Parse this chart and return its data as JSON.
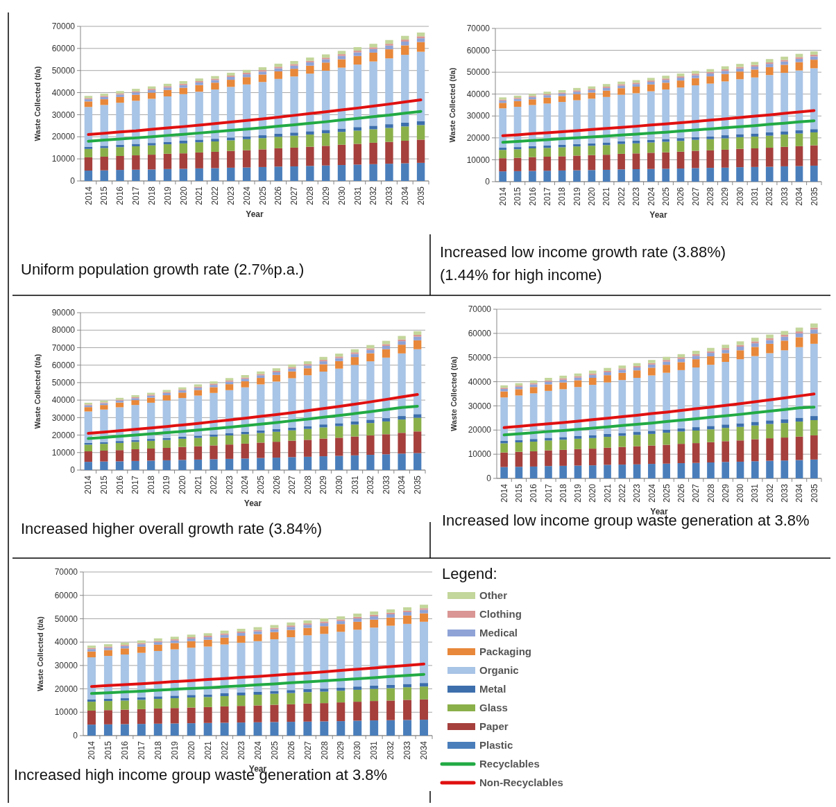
{
  "chart_data": [
    {
      "type": "bar",
      "stacked": true,
      "grid": "y",
      "legend": false,
      "xlabel": "Year",
      "ylabel": "Waste Collected (t/a)",
      "ylim": [
        0,
        70000
      ],
      "yticks": [
        0,
        10000,
        20000,
        30000,
        40000,
        50000,
        60000,
        70000
      ],
      "annotations": [
        "Uniform population growth rate (2.7%p.a.)"
      ],
      "categories": [
        "2014",
        "2015",
        "2016",
        "2017",
        "2018",
        "2019",
        "2020",
        "2021",
        "2022",
        "2023",
        "2024",
        "2025",
        "2026",
        "2027",
        "2028",
        "2029",
        "2030",
        "2031",
        "2032",
        "2033",
        "2034",
        "2035"
      ],
      "series": [
        {
          "color": "#4a7ebb",
          "values": [
            4700,
            4800,
            5000,
            5100,
            5200,
            5400,
            5500,
            5700,
            5800,
            6000,
            6100,
            6300,
            6500,
            6600,
            6800,
            7000,
            7200,
            7400,
            7600,
            7800,
            8000,
            8200
          ]
        },
        {
          "color": "#a5403d",
          "values": [
            6000,
            6200,
            6300,
            6500,
            6700,
            6900,
            7000,
            7200,
            7400,
            7600,
            7800,
            8000,
            8300,
            8500,
            8700,
            8900,
            9200,
            9400,
            9700,
            9900,
            10200,
            10500
          ]
        },
        {
          "color": "#8ab04a",
          "values": [
            3800,
            3900,
            4000,
            4100,
            4200,
            4300,
            4500,
            4600,
            4700,
            4800,
            5000,
            5100,
            5200,
            5400,
            5500,
            5700,
            5800,
            6000,
            6100,
            6300,
            6500,
            6600
          ]
        },
        {
          "color": "#3d6fad",
          "values": [
            1000,
            1000,
            1100,
            1100,
            1100,
            1100,
            1200,
            1200,
            1200,
            1300,
            1300,
            1300,
            1400,
            1400,
            1500,
            1500,
            1500,
            1600,
            1600,
            1700,
            1700,
            1700
          ]
        },
        {
          "color": "#a8c4e6",
          "values": [
            18000,
            18500,
            19000,
            19500,
            20000,
            20600,
            21100,
            21700,
            22300,
            22900,
            23500,
            24100,
            24800,
            25400,
            26100,
            26800,
            27600,
            28300,
            29100,
            29800,
            30700,
            31500
          ]
        },
        {
          "color": "#e8883a",
          "values": [
            2500,
            2600,
            2600,
            2700,
            2800,
            2900,
            2900,
            3000,
            3100,
            3200,
            3300,
            3400,
            3400,
            3500,
            3600,
            3700,
            3800,
            3900,
            4000,
            4100,
            4300,
            4400
          ]
        },
        {
          "color": "#8fa3d6",
          "values": [
            1000,
            1000,
            1100,
            1100,
            1100,
            1100,
            1200,
            1200,
            1200,
            1300,
            1300,
            1300,
            1400,
            1400,
            1500,
            1500,
            1500,
            1600,
            1600,
            1700,
            1700,
            1700
          ]
        },
        {
          "color": "#d99694",
          "values": [
            500,
            500,
            500,
            500,
            600,
            600,
            600,
            600,
            600,
            600,
            700,
            700,
            700,
            700,
            700,
            700,
            800,
            800,
            800,
            800,
            900,
            900
          ]
        },
        {
          "color": "#c3d69b",
          "values": [
            1000,
            1000,
            1100,
            1100,
            1100,
            1100,
            1200,
            1200,
            1200,
            1300,
            1300,
            1300,
            1400,
            1400,
            1500,
            1500,
            1500,
            1600,
            1600,
            1700,
            1700,
            1700
          ]
        },
        {
          "type": "line",
          "color": "#22aa44",
          "values": [
            18000,
            18500,
            19000,
            19500,
            20000,
            20600,
            21100,
            21700,
            22300,
            22900,
            23500,
            24100,
            24800,
            25400,
            26100,
            26800,
            27600,
            28300,
            29100,
            29800,
            30700,
            31500
          ]
        },
        {
          "type": "line",
          "color": "#e01010",
          "values": [
            21000,
            21600,
            22200,
            22700,
            23400,
            24000,
            24600,
            25300,
            26000,
            26700,
            27400,
            28100,
            28900,
            29700,
            30500,
            31300,
            32200,
            33000,
            33900,
            34800,
            35800,
            36700
          ]
        }
      ]
    },
    {
      "type": "bar",
      "stacked": true,
      "grid": "y",
      "legend": false,
      "xlabel": "Year",
      "ylabel": "Waste Collected (t/a)",
      "ylim": [
        0,
        70000
      ],
      "yticks": [
        0,
        10000,
        20000,
        30000,
        40000,
        50000,
        60000,
        70000
      ],
      "annotations": [
        "Increased low income growth rate (3.88%)",
        "(1.44% for high income)"
      ],
      "categories": [
        "2014",
        "2015",
        "2016",
        "2017",
        "2018",
        "2019",
        "2020",
        "2021",
        "2022",
        "2023",
        "2024",
        "2025",
        "2026",
        "2027",
        "2028",
        "2029",
        "2030",
        "2031",
        "2032",
        "2033",
        "2034",
        "2035"
      ],
      "series": [
        {
          "color": "#4a7ebb",
          "values": [
            4700,
            4800,
            4900,
            5000,
            5100,
            5200,
            5300,
            5400,
            5600,
            5700,
            5800,
            5900,
            6000,
            6200,
            6300,
            6400,
            6600,
            6700,
            6800,
            7000,
            7100,
            7300
          ]
        },
        {
          "color": "#a5403d",
          "values": [
            6000,
            6100,
            6300,
            6400,
            6500,
            6700,
            6800,
            6900,
            7100,
            7200,
            7400,
            7500,
            7700,
            7900,
            8000,
            8200,
            8400,
            8500,
            8700,
            8900,
            9100,
            9300
          ]
        },
        {
          "color": "#8ab04a",
          "values": [
            3800,
            3900,
            4000,
            4000,
            4100,
            4200,
            4300,
            4400,
            4500,
            4600,
            4700,
            4800,
            4900,
            5000,
            5100,
            5200,
            5300,
            5400,
            5500,
            5600,
            5800,
            5900
          ]
        },
        {
          "color": "#3d6fad",
          "values": [
            1000,
            1000,
            1000,
            1100,
            1100,
            1100,
            1100,
            1200,
            1200,
            1200,
            1200,
            1300,
            1300,
            1300,
            1300,
            1400,
            1400,
            1400,
            1500,
            1500,
            1500,
            1500
          ]
        },
        {
          "color": "#a8c4e6",
          "values": [
            18000,
            18400,
            18800,
            19200,
            19600,
            20000,
            20400,
            20800,
            21300,
            21700,
            22200,
            22600,
            23100,
            23600,
            24100,
            24600,
            25100,
            25600,
            26200,
            26700,
            27300,
            27800
          ]
        },
        {
          "color": "#e8883a",
          "values": [
            2500,
            2600,
            2600,
            2700,
            2700,
            2800,
            2800,
            2900,
            3000,
            3000,
            3100,
            3100,
            3200,
            3300,
            3300,
            3400,
            3500,
            3600,
            3600,
            3700,
            3800,
            3900
          ]
        },
        {
          "color": "#8fa3d6",
          "values": [
            1000,
            1000,
            1000,
            1100,
            1100,
            1100,
            1100,
            1200,
            1200,
            1200,
            1200,
            1300,
            1300,
            1300,
            1300,
            1400,
            1400,
            1400,
            1500,
            1500,
            1500,
            1500
          ]
        },
        {
          "color": "#d99694",
          "values": [
            500,
            500,
            500,
            500,
            500,
            600,
            600,
            600,
            600,
            600,
            600,
            600,
            600,
            700,
            700,
            700,
            700,
            700,
            700,
            700,
            800,
            800
          ]
        },
        {
          "color": "#c3d69b",
          "values": [
            1000,
            1000,
            1000,
            1100,
            1100,
            1100,
            1100,
            1200,
            1200,
            1200,
            1200,
            1300,
            1300,
            1300,
            1300,
            1400,
            1400,
            1400,
            1500,
            1500,
            1500,
            1500
          ]
        },
        {
          "type": "line",
          "color": "#22aa44",
          "values": [
            18000,
            18400,
            18800,
            19200,
            19600,
            20000,
            20400,
            20800,
            21300,
            21700,
            22200,
            22600,
            23100,
            23600,
            24100,
            24600,
            25100,
            25600,
            26200,
            26700,
            27300,
            27800
          ]
        },
        {
          "type": "line",
          "color": "#e01010",
          "values": [
            21000,
            21400,
            21900,
            22300,
            22800,
            23300,
            23800,
            24300,
            24800,
            25300,
            25900,
            26400,
            26900,
            27500,
            28100,
            28700,
            29300,
            29900,
            30500,
            31200,
            31800,
            32500
          ]
        }
      ]
    },
    {
      "type": "bar",
      "stacked": true,
      "grid": "y",
      "legend": false,
      "xlabel": "Year",
      "ylabel": "Waste Collected (t/a)",
      "ylim": [
        0,
        90000
      ],
      "yticks": [
        0,
        10000,
        20000,
        30000,
        40000,
        50000,
        60000,
        70000,
        80000,
        90000
      ],
      "annotations": [
        "Increased higher overall growth rate (3.84%)"
      ],
      "categories": [
        "2014",
        "2015",
        "2016",
        "2017",
        "2018",
        "2019",
        "2020",
        "2021",
        "2022",
        "2023",
        "2024",
        "2025",
        "2026",
        "2027",
        "2028",
        "2029",
        "2030",
        "2031",
        "2032",
        "2033",
        "2034",
        "2035"
      ],
      "series": [
        {
          "color": "#4a7ebb",
          "values": [
            4700,
            4900,
            5000,
            5200,
            5400,
            5600,
            5800,
            6000,
            6200,
            6400,
            6600,
            6900,
            7100,
            7400,
            7600,
            7900,
            8100,
            8400,
            8700,
            9000,
            9400,
            9700
          ]
        },
        {
          "color": "#a5403d",
          "values": [
            6000,
            6200,
            6400,
            6700,
            6900,
            7100,
            7400,
            7600,
            7900,
            8200,
            8500,
            8800,
            9100,
            9400,
            9700,
            10100,
            10400,
            10800,
            11100,
            11500,
            11900,
            12400
          ]
        },
        {
          "color": "#8ab04a",
          "values": [
            3800,
            3900,
            4100,
            4200,
            4400,
            4500,
            4700,
            4800,
            5000,
            5200,
            5400,
            5500,
            5700,
            5900,
            6200,
            6400,
            6600,
            6800,
            7100,
            7300,
            7600,
            7800
          ]
        },
        {
          "color": "#3d6fad",
          "values": [
            1000,
            1000,
            1100,
            1100,
            1100,
            1200,
            1200,
            1300,
            1300,
            1400,
            1400,
            1500,
            1500,
            1600,
            1600,
            1700,
            1700,
            1800,
            1900,
            1900,
            2000,
            2100
          ]
        },
        {
          "color": "#a8c4e6",
          "values": [
            18000,
            18600,
            19300,
            20000,
            20700,
            21400,
            22100,
            22900,
            23700,
            24500,
            25400,
            26300,
            27200,
            28200,
            29100,
            30200,
            31200,
            32300,
            33400,
            34600,
            35800,
            37100
          ]
        },
        {
          "color": "#e8883a",
          "values": [
            2500,
            2600,
            2700,
            2800,
            2900,
            3000,
            3100,
            3200,
            3300,
            3400,
            3500,
            3700,
            3800,
            3900,
            4000,
            4200,
            4300,
            4500,
            4600,
            4800,
            5000,
            5100
          ]
        },
        {
          "color": "#8fa3d6",
          "values": [
            1000,
            1000,
            1100,
            1100,
            1100,
            1200,
            1200,
            1300,
            1300,
            1400,
            1400,
            1500,
            1500,
            1600,
            1600,
            1700,
            1700,
            1800,
            1900,
            1900,
            2000,
            2100
          ]
        },
        {
          "color": "#d99694",
          "values": [
            500,
            500,
            500,
            600,
            600,
            600,
            600,
            600,
            700,
            700,
            700,
            700,
            800,
            800,
            800,
            800,
            900,
            900,
            900,
            1000,
            1000,
            1000
          ]
        },
        {
          "color": "#c3d69b",
          "values": [
            1000,
            1000,
            1100,
            1100,
            1100,
            1200,
            1200,
            1300,
            1300,
            1400,
            1400,
            1500,
            1500,
            1600,
            1600,
            1700,
            1700,
            1800,
            1900,
            1900,
            2000,
            2100
          ]
        },
        {
          "type": "line",
          "color": "#22aa44",
          "values": [
            18000,
            18600,
            19300,
            20000,
            20700,
            21400,
            22100,
            22900,
            23700,
            24500,
            25400,
            26300,
            27200,
            28200,
            29100,
            30200,
            31200,
            32300,
            33400,
            34600,
            35800,
            36500
          ]
        },
        {
          "type": "line",
          "color": "#e01010",
          "values": [
            21000,
            21700,
            22500,
            23300,
            24100,
            24900,
            25800,
            26700,
            27700,
            28600,
            29600,
            30700,
            31700,
            32800,
            34000,
            35200,
            36400,
            37700,
            39000,
            40400,
            41800,
            43200
          ]
        }
      ]
    },
    {
      "type": "bar",
      "stacked": true,
      "grid": "y",
      "legend": false,
      "xlabel": "Year",
      "ylabel": "Waste Collected (t/a)",
      "ylim": [
        0,
        70000
      ],
      "yticks": [
        0,
        10000,
        20000,
        30000,
        40000,
        50000,
        60000,
        70000
      ],
      "annotations": [
        "Increased low income group waste generation at 3.8%"
      ],
      "categories": [
        "2014",
        "2015",
        "2016",
        "2017",
        "2018",
        "2019",
        "2020",
        "2021",
        "2022",
        "2023",
        "2024",
        "2025",
        "2026",
        "2027",
        "2028",
        "2029",
        "2030",
        "2031",
        "2032",
        "2033",
        "2034",
        "2035"
      ],
      "series": [
        {
          "color": "#4a7ebb",
          "values": [
            4700,
            4800,
            4900,
            5100,
            5200,
            5300,
            5400,
            5600,
            5700,
            5800,
            6000,
            6100,
            6300,
            6400,
            6600,
            6800,
            6900,
            7100,
            7300,
            7400,
            7600,
            7800
          ]
        },
        {
          "color": "#a5403d",
          "values": [
            6000,
            6200,
            6300,
            6500,
            6600,
            6800,
            6900,
            7100,
            7300,
            7500,
            7600,
            7800,
            8000,
            8200,
            8400,
            8600,
            8800,
            9100,
            9300,
            9500,
            9700,
            10000
          ]
        },
        {
          "color": "#8ab04a",
          "values": [
            3800,
            3900,
            4000,
            4100,
            4200,
            4300,
            4400,
            4500,
            4600,
            4700,
            4800,
            5000,
            5100,
            5200,
            5300,
            5500,
            5600,
            5700,
            5900,
            6000,
            6200,
            6300
          ]
        },
        {
          "color": "#3d6fad",
          "values": [
            1000,
            1000,
            1100,
            1100,
            1100,
            1100,
            1200,
            1200,
            1200,
            1200,
            1300,
            1300,
            1300,
            1400,
            1400,
            1400,
            1500,
            1500,
            1500,
            1600,
            1600,
            1700
          ]
        },
        {
          "color": "#a8c4e6",
          "values": [
            18000,
            18400,
            18900,
            19400,
            19800,
            20300,
            20800,
            21300,
            21900,
            22400,
            22900,
            23500,
            24100,
            24700,
            25300,
            25900,
            26500,
            27200,
            27800,
            28500,
            29200,
            29900
          ]
        },
        {
          "color": "#e8883a",
          "values": [
            2500,
            2600,
            2600,
            2700,
            2800,
            2800,
            2900,
            3000,
            3000,
            3100,
            3200,
            3300,
            3300,
            3400,
            3500,
            3600,
            3700,
            3800,
            3900,
            4000,
            4100,
            4200
          ]
        },
        {
          "color": "#8fa3d6",
          "values": [
            1000,
            1000,
            1100,
            1100,
            1100,
            1100,
            1200,
            1200,
            1200,
            1200,
            1300,
            1300,
            1300,
            1400,
            1400,
            1400,
            1500,
            1500,
            1500,
            1600,
            1600,
            1700
          ]
        },
        {
          "color": "#d99694",
          "values": [
            500,
            500,
            500,
            500,
            600,
            600,
            600,
            600,
            600,
            600,
            600,
            700,
            700,
            700,
            700,
            700,
            700,
            800,
            800,
            800,
            800,
            800
          ]
        },
        {
          "color": "#c3d69b",
          "values": [
            1000,
            1000,
            1100,
            1100,
            1100,
            1100,
            1200,
            1200,
            1200,
            1200,
            1300,
            1300,
            1300,
            1400,
            1400,
            1400,
            1500,
            1500,
            1500,
            1600,
            1600,
            1700
          ]
        },
        {
          "type": "line",
          "color": "#22aa44",
          "values": [
            18000,
            18400,
            18900,
            19400,
            19800,
            20300,
            20800,
            21300,
            21900,
            22400,
            22900,
            23500,
            24100,
            24700,
            25300,
            25900,
            26500,
            27200,
            27800,
            28500,
            29200,
            29500
          ]
        },
        {
          "type": "line",
          "color": "#e01010",
          "values": [
            21000,
            21500,
            22100,
            22600,
            23100,
            23700,
            24300,
            24900,
            25500,
            26100,
            26800,
            27400,
            28100,
            28800,
            29500,
            30200,
            30900,
            31700,
            32500,
            33300,
            34100,
            34900
          ]
        }
      ]
    },
    {
      "type": "bar",
      "stacked": true,
      "grid": "y",
      "legend": "right",
      "legend_title": "Legend:",
      "xlabel": "Year",
      "ylabel": "Waste Collected (t/a)",
      "ylim": [
        0,
        70000
      ],
      "yticks": [
        0,
        10000,
        20000,
        30000,
        40000,
        50000,
        60000,
        70000
      ],
      "annotations": [
        "Increased high income group waste generation at 3.8%"
      ],
      "categories": [
        "2014",
        "2015",
        "2016",
        "2017",
        "2018",
        "2019",
        "2020",
        "2021",
        "2022",
        "2023",
        "2024",
        "2025",
        "2026",
        "2027",
        "2028",
        "2029",
        "2030",
        "2031",
        "2032",
        "2033",
        "2034"
      ],
      "series": [
        {
          "name": "Plastic",
          "color": "#4a7ebb",
          "values": [
            4700,
            4800,
            4900,
            5000,
            5100,
            5200,
            5300,
            5400,
            5500,
            5600,
            5700,
            5800,
            5900,
            6000,
            6100,
            6200,
            6400,
            6500,
            6600,
            6700,
            6800
          ]
        },
        {
          "name": "Paper",
          "color": "#a5403d",
          "values": [
            6000,
            6100,
            6200,
            6300,
            6500,
            6600,
            6700,
            6800,
            7000,
            7100,
            7200,
            7400,
            7500,
            7700,
            7800,
            8000,
            8100,
            8300,
            8400,
            8600,
            8700
          ]
        },
        {
          "name": "Glass",
          "color": "#8ab04a",
          "values": [
            3800,
            3900,
            3900,
            4000,
            4100,
            4200,
            4300,
            4300,
            4400,
            4500,
            4600,
            4700,
            4800,
            4900,
            4900,
            5000,
            5100,
            5200,
            5300,
            5400,
            5500
          ]
        },
        {
          "name": "Metal",
          "color": "#3d6fad",
          "values": [
            1000,
            1000,
            1000,
            1100,
            1100,
            1100,
            1100,
            1100,
            1200,
            1200,
            1200,
            1200,
            1300,
            1300,
            1300,
            1300,
            1400,
            1400,
            1400,
            1400,
            1500
          ]
        },
        {
          "name": "Organic",
          "color": "#a8c4e6",
          "values": [
            18000,
            18300,
            18700,
            19000,
            19400,
            19800,
            20200,
            20500,
            20900,
            21300,
            21700,
            22100,
            22600,
            23000,
            23400,
            23900,
            24300,
            24800,
            25300,
            25700,
            26200
          ]
        },
        {
          "name": "Packaging",
          "color": "#e8883a",
          "values": [
            2500,
            2500,
            2600,
            2600,
            2700,
            2700,
            2800,
            2900,
            2900,
            3000,
            3000,
            3100,
            3100,
            3200,
            3300,
            3300,
            3400,
            3400,
            3500,
            3600,
            3600
          ]
        },
        {
          "name": "Medical",
          "color": "#8fa3d6",
          "values": [
            1000,
            1000,
            1000,
            1100,
            1100,
            1100,
            1100,
            1100,
            1200,
            1200,
            1200,
            1200,
            1300,
            1300,
            1300,
            1300,
            1400,
            1400,
            1400,
            1400,
            1500
          ]
        },
        {
          "name": "Clothing",
          "color": "#d99694",
          "values": [
            500,
            500,
            500,
            500,
            500,
            500,
            600,
            600,
            600,
            600,
            600,
            600,
            600,
            600,
            700,
            700,
            700,
            700,
            700,
            700,
            700
          ]
        },
        {
          "name": "Other",
          "color": "#c3d69b",
          "values": [
            1000,
            1000,
            1000,
            1100,
            1100,
            1100,
            1100,
            1100,
            1200,
            1200,
            1200,
            1200,
            1300,
            1300,
            1300,
            1300,
            1400,
            1400,
            1400,
            1400,
            1500
          ]
        },
        {
          "name": "Recyclables",
          "type": "line",
          "color": "#22aa44",
          "values": [
            18000,
            18300,
            18700,
            19000,
            19400,
            19800,
            20200,
            20500,
            20900,
            21300,
            21700,
            22100,
            22600,
            23000,
            23400,
            23900,
            24300,
            24800,
            25300,
            25700,
            26200
          ]
        },
        {
          "name": "Non-Recyclables",
          "type": "line",
          "color": "#e01010",
          "values": [
            21000,
            21400,
            21800,
            22200,
            22600,
            23100,
            23500,
            24000,
            24400,
            24900,
            25300,
            25800,
            26300,
            26800,
            27300,
            27900,
            28400,
            28900,
            29500,
            30000,
            30600
          ]
        }
      ]
    }
  ]
}
